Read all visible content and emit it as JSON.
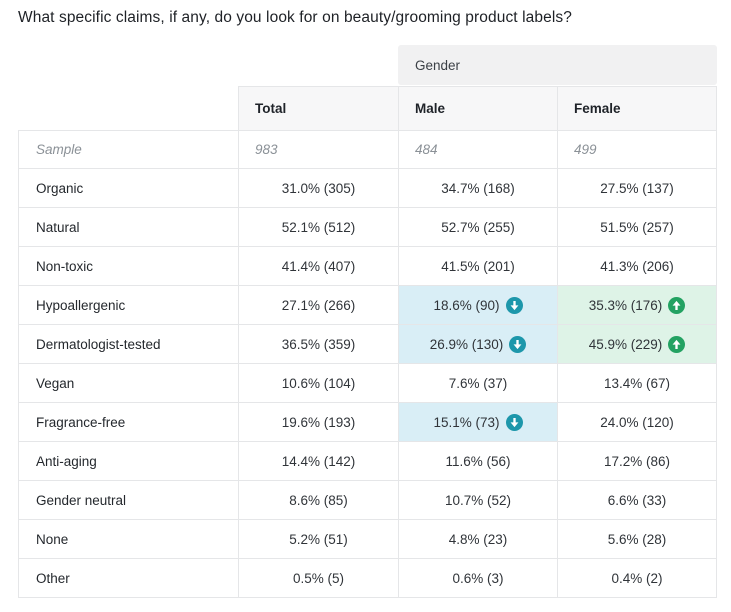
{
  "title": "What specific claims, if any, do you look for on beauty/grooming product labels?",
  "colors": {
    "lower_bg": "#d9eef6",
    "lower_icon": "#1d97ab",
    "higher_bg": "#def3e7",
    "higher_icon": "#23a262",
    "border": "#e5e6e8",
    "group_header_bg": "#f1f1f2",
    "header_bg": "#f7f7f8"
  },
  "chart_data": {
    "type": "table",
    "title": "What specific claims, if any, do you look for on beauty/grooming product labels?",
    "group_header": "Gender",
    "group_columns": [
      "Male",
      "Female"
    ],
    "columns": [
      "Total",
      "Male",
      "Female"
    ],
    "sample": {
      "label": "Sample",
      "values": [
        "983",
        "484",
        "499"
      ]
    },
    "rows": [
      {
        "label": "Organic",
        "cells": [
          {
            "text": "31.0% (305)",
            "pct": 31.0,
            "n": 305
          },
          {
            "text": "34.7% (168)",
            "pct": 34.7,
            "n": 168
          },
          {
            "text": "27.5% (137)",
            "pct": 27.5,
            "n": 137
          }
        ]
      },
      {
        "label": "Natural",
        "cells": [
          {
            "text": "52.1% (512)",
            "pct": 52.1,
            "n": 512
          },
          {
            "text": "52.7% (255)",
            "pct": 52.7,
            "n": 255
          },
          {
            "text": "51.5% (257)",
            "pct": 51.5,
            "n": 257
          }
        ]
      },
      {
        "label": "Non-toxic",
        "cells": [
          {
            "text": "41.4% (407)",
            "pct": 41.4,
            "n": 407
          },
          {
            "text": "41.5% (201)",
            "pct": 41.5,
            "n": 201
          },
          {
            "text": "41.3% (206)",
            "pct": 41.3,
            "n": 206
          }
        ]
      },
      {
        "label": "Hypoallergenic",
        "cells": [
          {
            "text": "27.1% (266)",
            "pct": 27.1,
            "n": 266
          },
          {
            "text": "18.6% (90)",
            "pct": 18.6,
            "n": 90,
            "highlight": "lower",
            "icon": "arrow-down-circle"
          },
          {
            "text": "35.3% (176)",
            "pct": 35.3,
            "n": 176,
            "highlight": "higher",
            "icon": "arrow-up-circle"
          }
        ]
      },
      {
        "label": "Dermatologist-tested",
        "cells": [
          {
            "text": "36.5% (359)",
            "pct": 36.5,
            "n": 359
          },
          {
            "text": "26.9% (130)",
            "pct": 26.9,
            "n": 130,
            "highlight": "lower",
            "icon": "arrow-down-circle"
          },
          {
            "text": "45.9% (229)",
            "pct": 45.9,
            "n": 229,
            "highlight": "higher",
            "icon": "arrow-up-circle"
          }
        ]
      },
      {
        "label": "Vegan",
        "cells": [
          {
            "text": "10.6% (104)",
            "pct": 10.6,
            "n": 104
          },
          {
            "text": "7.6% (37)",
            "pct": 7.6,
            "n": 37
          },
          {
            "text": "13.4% (67)",
            "pct": 13.4,
            "n": 67
          }
        ]
      },
      {
        "label": "Fragrance-free",
        "cells": [
          {
            "text": "19.6% (193)",
            "pct": 19.6,
            "n": 193
          },
          {
            "text": "15.1% (73)",
            "pct": 15.1,
            "n": 73,
            "highlight": "lower",
            "icon": "arrow-down-circle"
          },
          {
            "text": "24.0% (120)",
            "pct": 24.0,
            "n": 120
          }
        ]
      },
      {
        "label": "Anti-aging",
        "cells": [
          {
            "text": "14.4% (142)",
            "pct": 14.4,
            "n": 142
          },
          {
            "text": "11.6% (56)",
            "pct": 11.6,
            "n": 56
          },
          {
            "text": "17.2% (86)",
            "pct": 17.2,
            "n": 86
          }
        ]
      },
      {
        "label": "Gender neutral",
        "cells": [
          {
            "text": "8.6% (85)",
            "pct": 8.6,
            "n": 85
          },
          {
            "text": "10.7% (52)",
            "pct": 10.7,
            "n": 52
          },
          {
            "text": "6.6% (33)",
            "pct": 6.6,
            "n": 33
          }
        ]
      },
      {
        "label": "None",
        "cells": [
          {
            "text": "5.2% (51)",
            "pct": 5.2,
            "n": 51
          },
          {
            "text": "4.8% (23)",
            "pct": 4.8,
            "n": 23
          },
          {
            "text": "5.6% (28)",
            "pct": 5.6,
            "n": 28
          }
        ]
      },
      {
        "label": "Other",
        "cells": [
          {
            "text": "0.5% (5)",
            "pct": 0.5,
            "n": 5
          },
          {
            "text": "0.6% (3)",
            "pct": 0.6,
            "n": 3
          },
          {
            "text": "0.4% (2)",
            "pct": 0.4,
            "n": 2
          }
        ]
      }
    ]
  }
}
